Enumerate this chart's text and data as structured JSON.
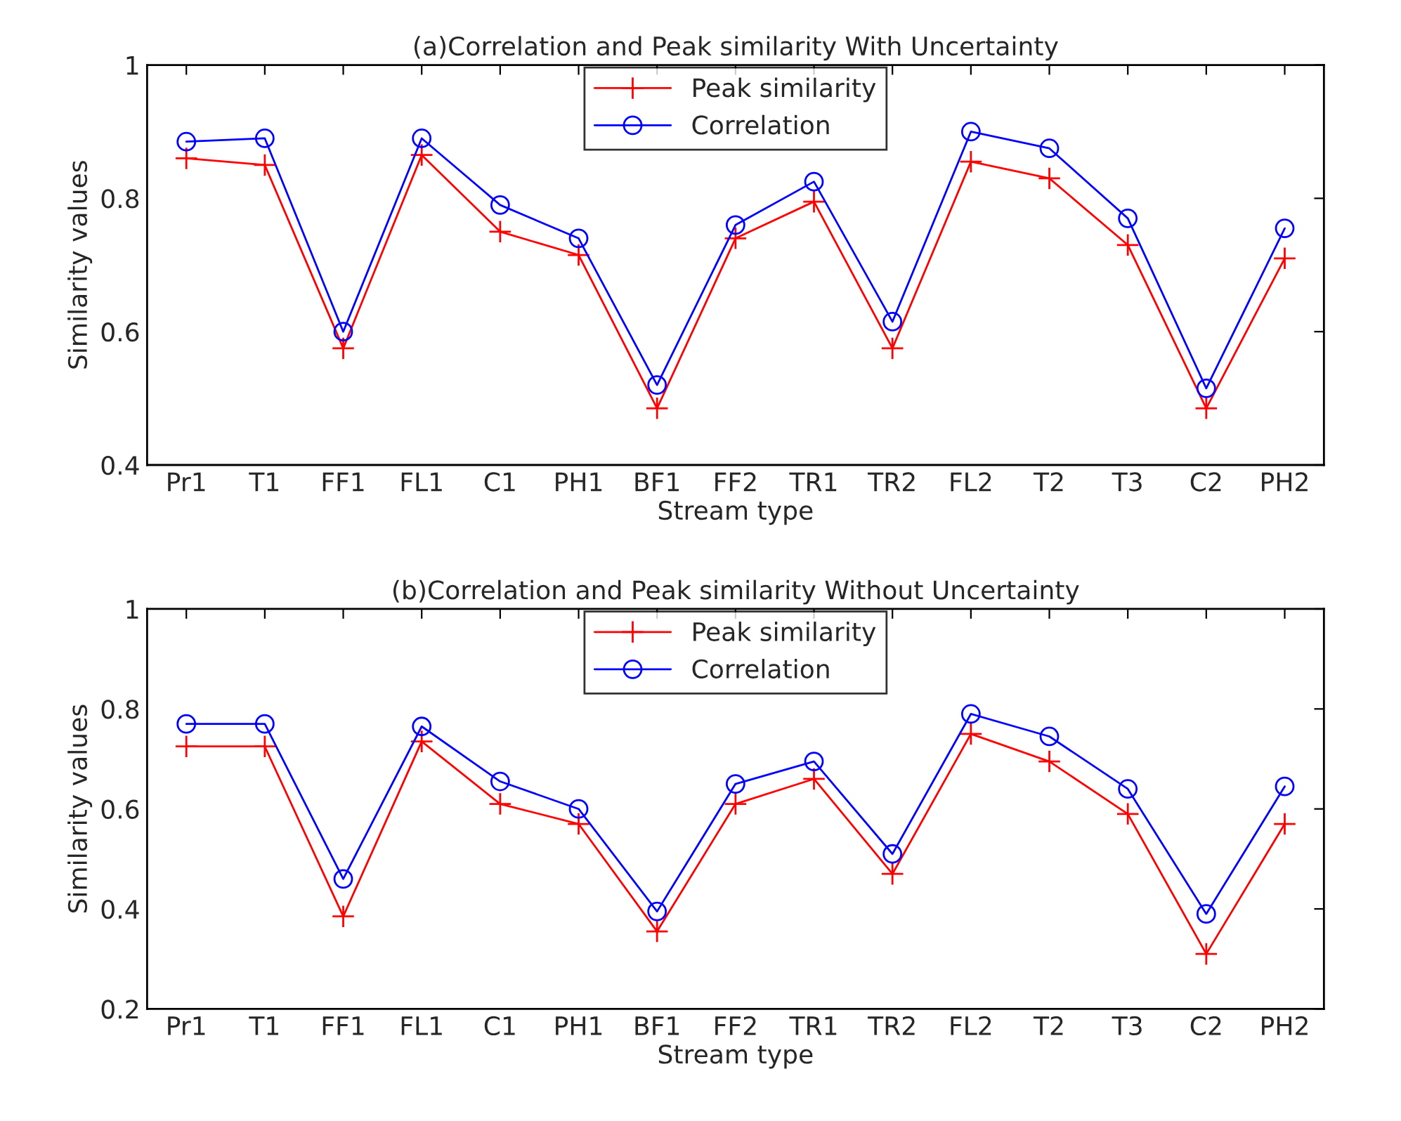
{
  "chart_data": [
    {
      "type": "line",
      "title": "(a)Correlation and Peak similarity With Uncertainty",
      "xlabel": "Stream type",
      "ylabel": "Similarity values",
      "categories": [
        "Pr1",
        "T1",
        "FF1",
        "FL1",
        "C1",
        "PH1",
        "BF1",
        "FF2",
        "TR1",
        "TR2",
        "FL2",
        "T2",
        "T3",
        "C2",
        "PH2"
      ],
      "series": [
        {
          "name": "Peak similarity",
          "color": "#ff0000",
          "marker": "cross",
          "values": [
            0.86,
            0.85,
            0.575,
            0.865,
            0.75,
            0.715,
            0.485,
            0.74,
            0.795,
            0.575,
            0.855,
            0.83,
            0.73,
            0.485,
            0.71
          ]
        },
        {
          "name": "Correlation",
          "color": "#0000ff",
          "marker": "circle",
          "values": [
            0.885,
            0.89,
            0.6,
            0.89,
            0.79,
            0.74,
            0.52,
            0.76,
            0.825,
            0.615,
            0.9,
            0.875,
            0.77,
            0.515,
            0.755
          ]
        }
      ],
      "ylim": [
        0.4,
        1
      ],
      "yticks": [
        0.4,
        0.6,
        0.8,
        1
      ],
      "legend": "top",
      "grid": false,
      "line_style": "solid"
    },
    {
      "type": "line",
      "title": "(b)Correlation and Peak similarity Without Uncertainty",
      "xlabel": "Stream type",
      "ylabel": "Similarity values",
      "categories": [
        "Pr1",
        "T1",
        "FF1",
        "FL1",
        "C1",
        "PH1",
        "BF1",
        "FF2",
        "TR1",
        "TR2",
        "FL2",
        "T2",
        "T3",
        "C2",
        "PH2"
      ],
      "series": [
        {
          "name": "Peak similarity",
          "color": "#ff0000",
          "marker": "cross",
          "values": [
            0.725,
            0.725,
            0.385,
            0.735,
            0.61,
            0.57,
            0.355,
            0.61,
            0.66,
            0.47,
            0.75,
            0.695,
            0.59,
            0.31,
            0.57
          ]
        },
        {
          "name": "Correlation",
          "color": "#0000ff",
          "marker": "circle",
          "values": [
            0.77,
            0.77,
            0.46,
            0.765,
            0.655,
            0.6,
            0.395,
            0.65,
            0.695,
            0.51,
            0.79,
            0.745,
            0.64,
            0.39,
            0.645
          ]
        }
      ],
      "ylim": [
        0.2,
        1
      ],
      "yticks": [
        0.2,
        0.4,
        0.6,
        0.8,
        1
      ],
      "legend": "top",
      "grid": false,
      "line_style": "solid"
    }
  ]
}
